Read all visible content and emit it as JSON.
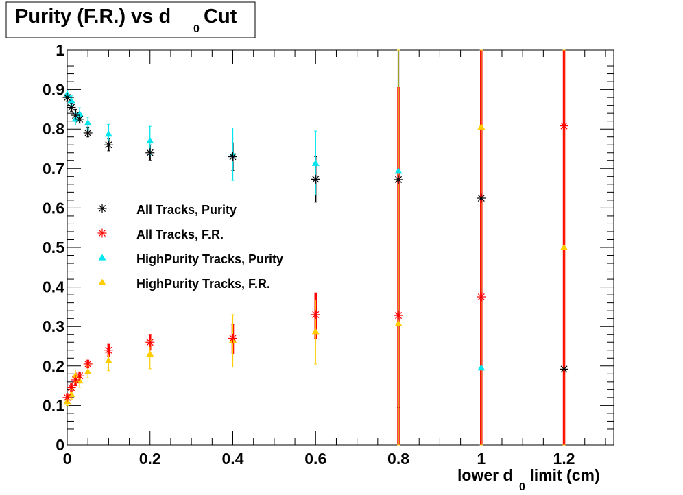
{
  "chart_data": {
    "type": "scatter",
    "title": {
      "main": "Purity (F.R.) vs d",
      "sub": "0",
      "tail": "Cut"
    },
    "xlabel": {
      "main": "lower d",
      "sub": "0",
      "tail": " limit (cm)"
    },
    "ylabel": "",
    "xlim": [
      0,
      1.32
    ],
    "ylim": [
      0,
      1
    ],
    "x_ticks": [
      "0",
      "0.2",
      "0.4",
      "0.6",
      "0.8",
      "1",
      "1.2"
    ],
    "y_ticks": [
      "0",
      "0.1",
      "0.2",
      "0.3",
      "0.4",
      "0.5",
      "0.6",
      "0.7",
      "0.8",
      "0.9",
      "1"
    ],
    "grid": false,
    "legend_position": "center-left",
    "series": [
      {
        "name": "All Tracks, Purity",
        "marker": "star",
        "color": "#000000",
        "points": [
          {
            "x": 0.0,
            "y": 0.88,
            "lo": 0.87,
            "hi": 0.89
          },
          {
            "x": 0.01,
            "y": 0.855,
            "lo": 0.845,
            "hi": 0.865
          },
          {
            "x": 0.02,
            "y": 0.835,
            "lo": 0.82,
            "hi": 0.85
          },
          {
            "x": 0.03,
            "y": 0.825,
            "lo": 0.815,
            "hi": 0.835
          },
          {
            "x": 0.05,
            "y": 0.79,
            "lo": 0.78,
            "hi": 0.805
          },
          {
            "x": 0.1,
            "y": 0.76,
            "lo": 0.745,
            "hi": 0.775
          },
          {
            "x": 0.2,
            "y": 0.74,
            "lo": 0.72,
            "hi": 0.76
          },
          {
            "x": 0.4,
            "y": 0.73,
            "lo": 0.695,
            "hi": 0.765
          },
          {
            "x": 0.6,
            "y": 0.673,
            "lo": 0.615,
            "hi": 0.73
          },
          {
            "x": 0.8,
            "y": 0.672,
            "lo": 0.095,
            "hi": 1.0
          },
          {
            "x": 1.0,
            "y": 0.625,
            "lo": 0.0,
            "hi": 1.0
          },
          {
            "x": 1.2,
            "y": 0.192,
            "lo": 0.0,
            "hi": 1.0
          }
        ]
      },
      {
        "name": "All Tracks, F.R.",
        "marker": "star",
        "color": "#ff0000",
        "points": [
          {
            "x": 0.0,
            "y": 0.12,
            "lo": 0.11,
            "hi": 0.13
          },
          {
            "x": 0.01,
            "y": 0.145,
            "lo": 0.135,
            "hi": 0.155
          },
          {
            "x": 0.02,
            "y": 0.165,
            "lo": 0.15,
            "hi": 0.18
          },
          {
            "x": 0.03,
            "y": 0.175,
            "lo": 0.165,
            "hi": 0.185
          },
          {
            "x": 0.05,
            "y": 0.205,
            "lo": 0.195,
            "hi": 0.215
          },
          {
            "x": 0.1,
            "y": 0.24,
            "lo": 0.225,
            "hi": 0.255
          },
          {
            "x": 0.2,
            "y": 0.26,
            "lo": 0.24,
            "hi": 0.28
          },
          {
            "x": 0.4,
            "y": 0.27,
            "lo": 0.23,
            "hi": 0.305
          },
          {
            "x": 0.6,
            "y": 0.33,
            "lo": 0.27,
            "hi": 0.385
          },
          {
            "x": 0.8,
            "y": 0.328,
            "lo": 0.0,
            "hi": 0.905
          },
          {
            "x": 1.0,
            "y": 0.375,
            "lo": 0.0,
            "hi": 1.0
          },
          {
            "x": 1.2,
            "y": 0.808,
            "lo": 0.0,
            "hi": 1.0
          }
        ]
      },
      {
        "name": "HighPurity Tracks, Purity",
        "marker": "triangle",
        "color": "#00e5ee",
        "points": [
          {
            "x": 0.0,
            "y": 0.888,
            "lo": 0.878,
            "hi": 0.898
          },
          {
            "x": 0.01,
            "y": 0.872,
            "lo": 0.86,
            "hi": 0.884
          },
          {
            "x": 0.02,
            "y": 0.825,
            "lo": 0.81,
            "hi": 0.84
          },
          {
            "x": 0.03,
            "y": 0.838,
            "lo": 0.822,
            "hi": 0.854
          },
          {
            "x": 0.05,
            "y": 0.815,
            "lo": 0.8,
            "hi": 0.83
          },
          {
            "x": 0.1,
            "y": 0.787,
            "lo": 0.762,
            "hi": 0.812
          },
          {
            "x": 0.2,
            "y": 0.77,
            "lo": 0.735,
            "hi": 0.807
          },
          {
            "x": 0.4,
            "y": 0.735,
            "lo": 0.67,
            "hi": 0.803
          },
          {
            "x": 0.6,
            "y": 0.713,
            "lo": 0.633,
            "hi": 0.795
          },
          {
            "x": 0.8,
            "y": 0.693,
            "lo": 0.0,
            "hi": 1.0
          },
          {
            "x": 1.0,
            "y": 0.195,
            "lo": 0.0,
            "hi": 1.0
          }
        ]
      },
      {
        "name": "HighPurity Tracks, F.R.",
        "marker": "triangle",
        "color": "#ffcc00",
        "points": [
          {
            "x": 0.0,
            "y": 0.11,
            "lo": 0.1,
            "hi": 0.122
          },
          {
            "x": 0.01,
            "y": 0.128,
            "lo": 0.116,
            "hi": 0.14
          },
          {
            "x": 0.02,
            "y": 0.175,
            "lo": 0.16,
            "hi": 0.19
          },
          {
            "x": 0.03,
            "y": 0.162,
            "lo": 0.146,
            "hi": 0.178
          },
          {
            "x": 0.05,
            "y": 0.185,
            "lo": 0.17,
            "hi": 0.2
          },
          {
            "x": 0.1,
            "y": 0.213,
            "lo": 0.188,
            "hi": 0.238
          },
          {
            "x": 0.2,
            "y": 0.23,
            "lo": 0.193,
            "hi": 0.265
          },
          {
            "x": 0.4,
            "y": 0.265,
            "lo": 0.197,
            "hi": 0.33
          },
          {
            "x": 0.6,
            "y": 0.287,
            "lo": 0.205,
            "hi": 0.367
          },
          {
            "x": 0.8,
            "y": 0.307,
            "lo": 0.0,
            "hi": 1.0
          },
          {
            "x": 1.0,
            "y": 0.805,
            "lo": 0.0,
            "hi": 1.0
          },
          {
            "x": 1.2,
            "y": 0.5,
            "lo": 0.0,
            "hi": 1.0
          }
        ]
      }
    ]
  }
}
